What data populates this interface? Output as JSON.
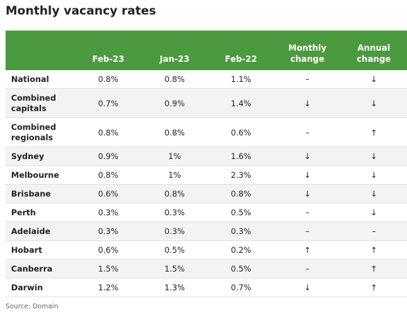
{
  "title": "Monthly vacancy rates",
  "table": {
    "headers": [
      "",
      "Feb-23",
      "Jan-23",
      "Feb-22",
      "Monthly change",
      "Annual change"
    ],
    "rows": [
      [
        "National",
        "0.8%",
        "0.8%",
        "1.1%",
        "–",
        "↓"
      ],
      [
        "Combined capitals",
        "0.7%",
        "0.9%",
        "1.4%",
        "↓",
        "↓"
      ],
      [
        "Combined regionals",
        "0.8%",
        "0.8%",
        "0.6%",
        "–",
        "↑"
      ],
      [
        "Sydney",
        "0.9%",
        "1%",
        "1.6%",
        "↓",
        "↓"
      ],
      [
        "Melbourne",
        "0.8%",
        "1%",
        "2.3%",
        "↓",
        "↓"
      ],
      [
        "Brisbane",
        "0.6%",
        "0.8%",
        "0.8%",
        "↓",
        "↓"
      ],
      [
        "Perth",
        "0.3%",
        "0.3%",
        "0.5%",
        "–",
        "↓"
      ],
      [
        "Adelaide",
        "0.3%",
        "0.3%",
        "0.3%",
        "–",
        "–"
      ],
      [
        "Hobart",
        "0.6%",
        "0.5%",
        "0.2%",
        "↑",
        "↑"
      ],
      [
        "Canberra",
        "1.5%",
        "1.5%",
        "0.5%",
        "–",
        "↑"
      ],
      [
        "Darwin",
        "1.2%",
        "1.3%",
        "0.7%",
        "↓",
        "↑"
      ]
    ]
  },
  "source": "Source: Domain"
}
